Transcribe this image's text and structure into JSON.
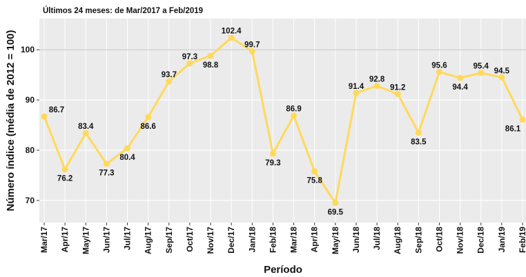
{
  "chart_data": {
    "type": "line",
    "subtitle": "Últimos 24 meses: de Mar/2017 a Feb/2019",
    "x_label": "Período",
    "y_label": "Número índice (média de 2012 = 100)",
    "categories": [
      "Mar/17",
      "Apr/17",
      "May/17",
      "Jun/17",
      "Jul/17",
      "Aug/17",
      "Sep/17",
      "Oct/17",
      "Nov/17",
      "Dec/17",
      "Jan/18",
      "Feb/18",
      "Mar/18",
      "Apr/18",
      "May/18",
      "Jun/18",
      "Jul/18",
      "Aug/18",
      "Sep/18",
      "Oct/18",
      "Nov/18",
      "Dec/18",
      "Jan/19",
      "Feb/19"
    ],
    "values": [
      86.7,
      76.2,
      83.4,
      77.3,
      80.4,
      86.6,
      93.7,
      97.3,
      98.8,
      102.4,
      99.7,
      79.3,
      86.9,
      75.8,
      69.5,
      91.4,
      92.8,
      91.2,
      83.5,
      95.6,
      94.4,
      95.4,
      94.5,
      86.1
    ],
    "color": "#ffd95a",
    "ylim": [
      65.6,
      106.2
    ],
    "yticks": [
      70,
      80,
      90,
      100
    ],
    "reference_line": 100,
    "grid": true
  }
}
